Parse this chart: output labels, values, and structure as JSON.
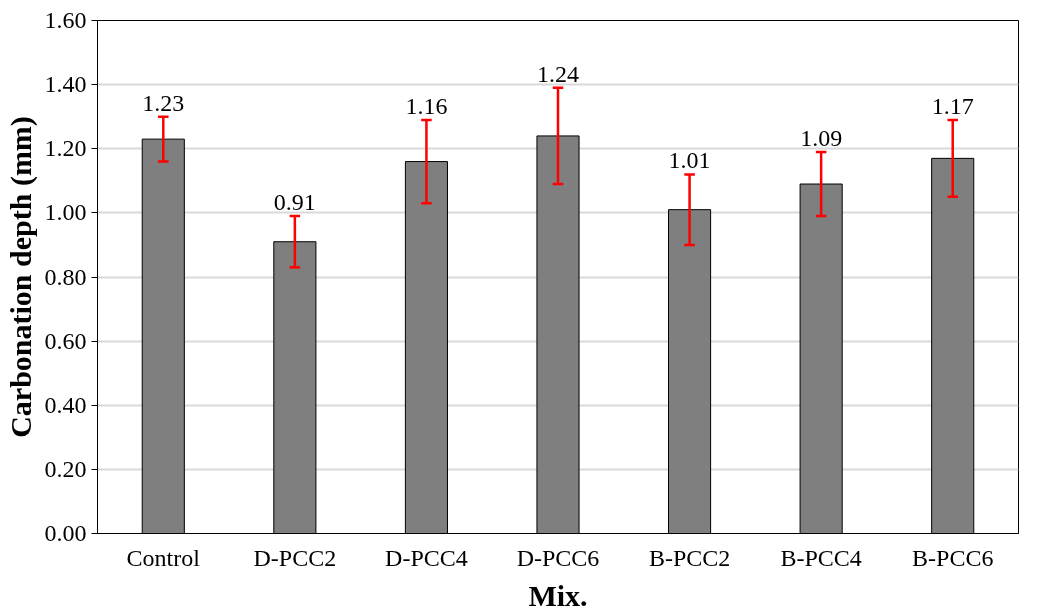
{
  "chart_data": {
    "type": "bar",
    "xlabel": "Mix.",
    "ylabel": "Carbonation depth (mm)",
    "categories": [
      "Control",
      "D-PCC2",
      "D-PCC4",
      "D-PCC6",
      "B-PCC2",
      "B-PCC4",
      "B-PCC6"
    ],
    "values": [
      1.23,
      0.91,
      1.16,
      1.24,
      1.01,
      1.09,
      1.17
    ],
    "errors": [
      0.07,
      0.08,
      0.13,
      0.15,
      0.11,
      0.1,
      0.12
    ],
    "value_labels": [
      "1.23",
      "0.91",
      "1.16",
      "1.24",
      "1.01",
      "1.09",
      "1.17"
    ],
    "color": "#7f7f7f",
    "ylim": [
      0,
      1.6
    ],
    "yticks": [
      {
        "value": 0,
        "label": "0.00"
      },
      {
        "value": 0.2,
        "label": "0.20"
      },
      {
        "value": 0.4,
        "label": "0.40"
      },
      {
        "value": 0.6,
        "label": "0.60"
      },
      {
        "value": 0.8,
        "label": "0.80"
      },
      {
        "value": 1.0,
        "label": "1.00"
      },
      {
        "value": 1.2,
        "label": "1.20"
      },
      {
        "value": 1.4,
        "label": "1.40"
      },
      {
        "value": 1.6,
        "label": "1.60"
      }
    ],
    "grid": "y"
  }
}
